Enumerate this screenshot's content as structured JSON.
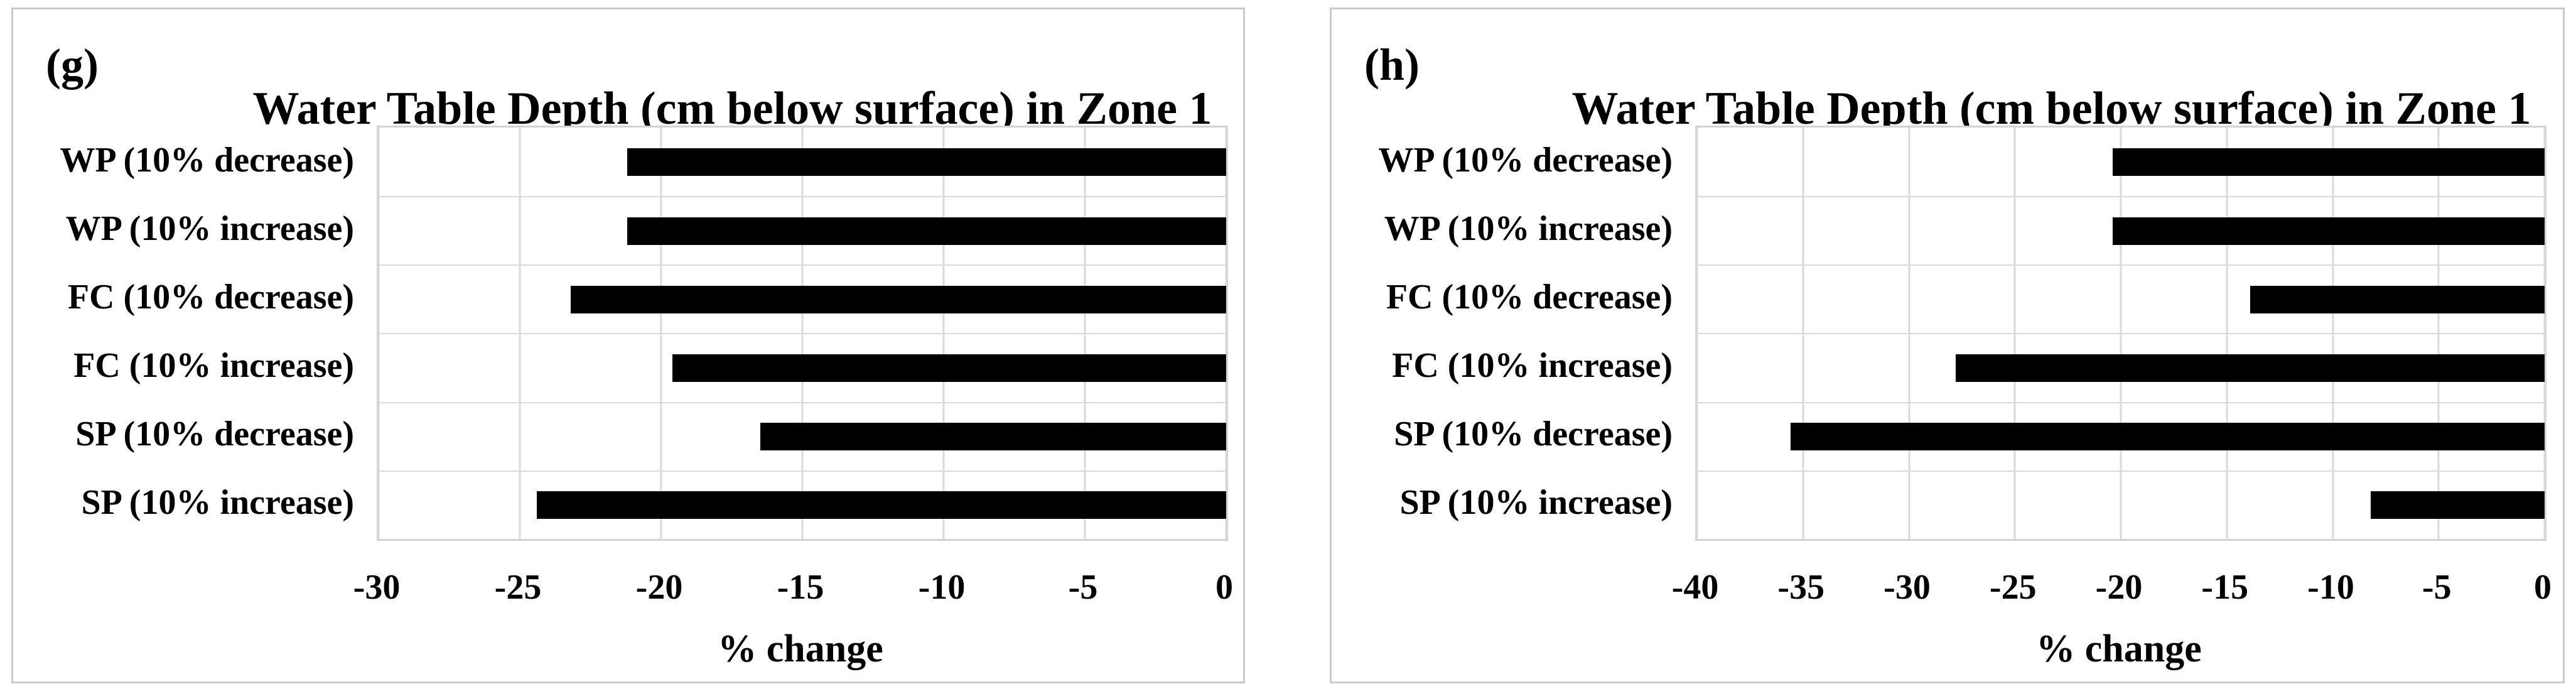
{
  "figure": {
    "background": "#ffffff",
    "colors": {
      "bar": "#000000",
      "gridline": "#d9d9d9",
      "plot_border": "#d2d2d2",
      "panel_border": "#c9c9c9",
      "text": "#000000"
    }
  },
  "chart_data": [
    {
      "type": "bar",
      "orientation": "horizontal",
      "panel_label": "(g)",
      "title": "Water Table Depth (cm below surface) in Zone 1",
      "xlabel": "% change",
      "categories": [
        "WP (10% decrease)",
        "WP (10% increase)",
        "FC (10% decrease)",
        "FC (10% increase)",
        "SP (10% decrease)",
        "SP (10% increase)"
      ],
      "values": [
        -21.2,
        -21.2,
        -23.2,
        -19.6,
        -16.5,
        -24.4
      ],
      "xlim": [
        -30,
        0
      ],
      "xticks": [
        -30,
        -25,
        -20,
        -15,
        -10,
        -5,
        0
      ],
      "grid": true,
      "legend": "none",
      "bar_color": "#000000"
    },
    {
      "type": "bar",
      "orientation": "horizontal",
      "panel_label": "(h)",
      "title": "Water Table Depth (cm below surface) in Zone 1",
      "xlabel": "% change",
      "categories": [
        "WP (10% decrease)",
        "WP (10% increase)",
        "FC (10% decrease)",
        "FC (10% increase)",
        "SP (10% decrease)",
        "SP (10% increase)"
      ],
      "values": [
        -20.4,
        -20.4,
        -13.9,
        -27.8,
        -35.6,
        -8.2
      ],
      "xlim": [
        -40,
        0
      ],
      "xticks": [
        -40,
        -35,
        -30,
        -25,
        -20,
        -15,
        -10,
        -5,
        0
      ],
      "grid": true,
      "legend": "none",
      "bar_color": "#000000"
    }
  ]
}
